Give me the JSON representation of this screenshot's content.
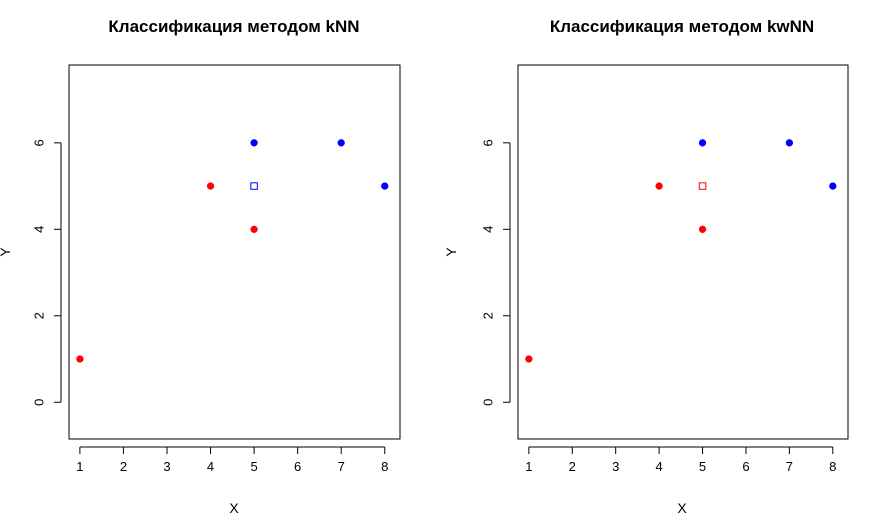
{
  "chart_data": [
    {
      "type": "scatter",
      "title": "Классификация методом kNN",
      "xlabel": "X",
      "ylabel": "Y",
      "xlim": [
        0.75,
        8.35
      ],
      "ylim": [
        -0.85,
        7.8
      ],
      "xticks": [
        "1",
        "2",
        "3",
        "4",
        "5",
        "6",
        "7",
        "8"
      ],
      "yticks": [
        "0",
        "2",
        "4",
        "6"
      ],
      "grid": false,
      "points": [
        {
          "x": 1,
          "y": 1,
          "class": "red"
        },
        {
          "x": 4,
          "y": 5,
          "class": "red"
        },
        {
          "x": 5,
          "y": 4,
          "class": "red"
        },
        {
          "x": 5,
          "y": 6,
          "class": "blue"
        },
        {
          "x": 7,
          "y": 6,
          "class": "blue"
        },
        {
          "x": 8,
          "y": 5,
          "class": "blue"
        }
      ],
      "query_point": {
        "x": 5,
        "y": 5,
        "class": "blue"
      }
    },
    {
      "type": "scatter",
      "title": "Классификация методом kwNN",
      "xlabel": "X",
      "ylabel": "Y",
      "xlim": [
        0.75,
        8.35
      ],
      "ylim": [
        -0.85,
        7.8
      ],
      "xticks": [
        "1",
        "2",
        "3",
        "4",
        "5",
        "6",
        "7",
        "8"
      ],
      "yticks": [
        "0",
        "2",
        "4",
        "6"
      ],
      "grid": false,
      "points": [
        {
          "x": 1,
          "y": 1,
          "class": "red"
        },
        {
          "x": 4,
          "y": 5,
          "class": "red"
        },
        {
          "x": 5,
          "y": 4,
          "class": "red"
        },
        {
          "x": 5,
          "y": 6,
          "class": "blue"
        },
        {
          "x": 7,
          "y": 6,
          "class": "blue"
        },
        {
          "x": 8,
          "y": 5,
          "class": "blue"
        }
      ],
      "query_point": {
        "x": 5,
        "y": 5,
        "class": "red"
      }
    }
  ],
  "colors": {
    "red": "#ff0000",
    "blue": "#0000ff",
    "axis": "#000000"
  }
}
